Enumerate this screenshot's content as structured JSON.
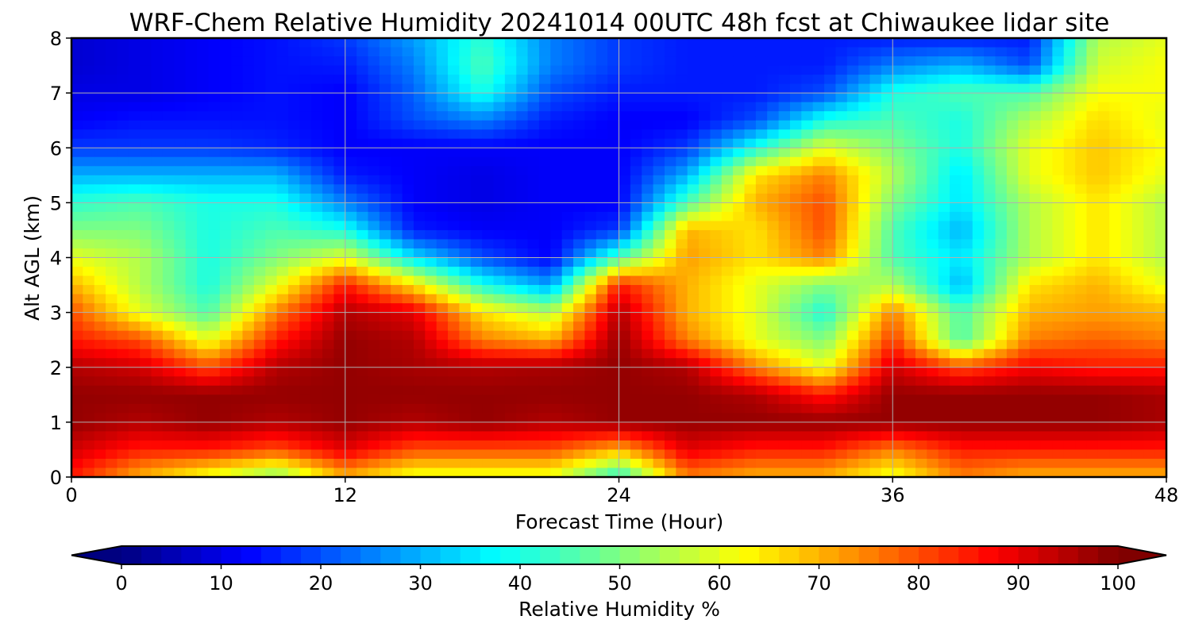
{
  "chart_data": {
    "type": "heatmap",
    "title": "WRF-Chem Relative Humidity 20241014 00UTC 48h fcst at Chiwaukee lidar site",
    "xlabel": "Forecast Time (Hour)",
    "ylabel": "Alt AGL (km)",
    "xlim": [
      0,
      48
    ],
    "ylim": [
      0,
      8
    ],
    "x_ticks": [
      "0",
      "12",
      "24",
      "36",
      "48"
    ],
    "y_ticks": [
      "0",
      "1",
      "2",
      "3",
      "4",
      "5",
      "6",
      "7",
      "8"
    ],
    "grid": true,
    "colormap": "jet",
    "colorbar": {
      "label": "Relative Humidity %",
      "range": [
        0,
        100
      ],
      "extend": "both",
      "ticks": [
        "0",
        "10",
        "20",
        "30",
        "40",
        "50",
        "60",
        "70",
        "80",
        "90",
        "100"
      ]
    },
    "x_hours": [
      0,
      3,
      6,
      9,
      12,
      15,
      18,
      21,
      24,
      27,
      30,
      33,
      36,
      39,
      42,
      45,
      48
    ],
    "altitudes_km": [
      0,
      0.5,
      1,
      1.5,
      2,
      2.5,
      3,
      3.5,
      4,
      4.5,
      5,
      5.5,
      6,
      6.5,
      7,
      7.5,
      8
    ],
    "values": [
      [
        85,
        70,
        60,
        50,
        70,
        60,
        60,
        60,
        40,
        75,
        70,
        70,
        60,
        75,
        70,
        70,
        70
      ],
      [
        92,
        85,
        85,
        80,
        90,
        80,
        80,
        80,
        70,
        90,
        85,
        85,
        75,
        85,
        85,
        85,
        85
      ],
      [
        98,
        95,
        98,
        95,
        98,
        95,
        98,
        95,
        98,
        98,
        98,
        98,
        98,
        98,
        98,
        98,
        96
      ],
      [
        98,
        98,
        98,
        98,
        98,
        98,
        98,
        98,
        98,
        98,
        95,
        85,
        98,
        98,
        98,
        98,
        96
      ],
      [
        95,
        92,
        80,
        95,
        98,
        96,
        95,
        96,
        98,
        95,
        75,
        60,
        92,
        80,
        88,
        85,
        85
      ],
      [
        85,
        80,
        60,
        85,
        98,
        95,
        75,
        70,
        98,
        75,
        60,
        50,
        82,
        45,
        75,
        78,
        75
      ],
      [
        80,
        60,
        45,
        75,
        95,
        90,
        65,
        55,
        95,
        70,
        60,
        40,
        75,
        45,
        70,
        72,
        70
      ],
      [
        70,
        55,
        40,
        60,
        85,
        65,
        40,
        28,
        85,
        70,
        60,
        50,
        55,
        30,
        65,
        70,
        60
      ],
      [
        60,
        55,
        40,
        50,
        60,
        35,
        20,
        12,
        45,
        72,
        65,
        75,
        45,
        35,
        55,
        65,
        55
      ],
      [
        50,
        50,
        40,
        45,
        40,
        15,
        12,
        12,
        18,
        70,
        65,
        80,
        45,
        30,
        55,
        65,
        55
      ],
      [
        42,
        45,
        40,
        40,
        25,
        12,
        10,
        12,
        12,
        45,
        70,
        80,
        50,
        35,
        55,
        65,
        55
      ],
      [
        30,
        30,
        30,
        30,
        15,
        12,
        10,
        12,
        12,
        30,
        65,
        75,
        55,
        35,
        60,
        68,
        60
      ],
      [
        18,
        18,
        18,
        16,
        12,
        12,
        12,
        12,
        12,
        18,
        40,
        60,
        50,
        40,
        60,
        68,
        62
      ],
      [
        12,
        14,
        14,
        14,
        12,
        20,
        25,
        15,
        12,
        12,
        20,
        40,
        45,
        40,
        55,
        66,
        60
      ],
      [
        10,
        10,
        12,
        14,
        12,
        22,
        40,
        20,
        15,
        15,
        15,
        20,
        40,
        45,
        45,
        62,
        62
      ],
      [
        8,
        10,
        12,
        14,
        15,
        25,
        45,
        25,
        18,
        15,
        15,
        15,
        25,
        30,
        20,
        58,
        62
      ],
      [
        8,
        10,
        12,
        14,
        18,
        28,
        42,
        25,
        18,
        15,
        15,
        15,
        15,
        15,
        15,
        55,
        60
      ]
    ]
  }
}
